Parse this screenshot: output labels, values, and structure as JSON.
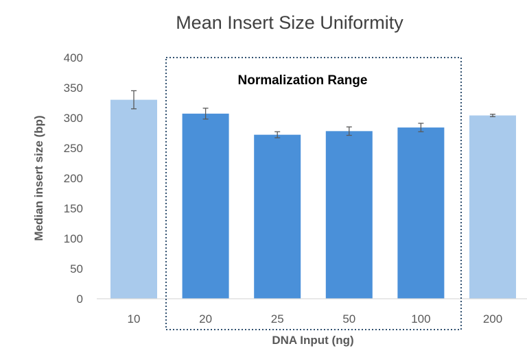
{
  "chart_data": {
    "type": "bar",
    "title": "Mean Insert Size Uniformity",
    "xlabel": "DNA Input (ng)",
    "ylabel": "Median insert size (bp)",
    "ylim": [
      0,
      400
    ],
    "yticks": [
      "0",
      "50",
      "100",
      "150",
      "200",
      "250",
      "300",
      "350",
      "400"
    ],
    "categories": [
      "10",
      "20",
      "25",
      "50",
      "100",
      "200"
    ],
    "values": [
      330,
      307,
      272,
      278,
      284,
      304
    ],
    "error": [
      15,
      9,
      5,
      7,
      7,
      2
    ],
    "highlighted": [
      false,
      true,
      true,
      true,
      true,
      false
    ],
    "annotation": "Normalization Range",
    "grid": false,
    "legend": "none",
    "colors": {
      "highlight": "#4a90d9",
      "muted": "#a9caec",
      "error_bar": "#595959",
      "box_border": "#2f4f6f",
      "axis": "#d9d9d9"
    }
  }
}
